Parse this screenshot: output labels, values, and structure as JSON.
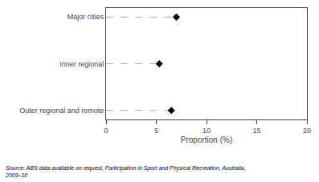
{
  "chart_data": {
    "type": "lollipop",
    "orientation": "horizontal",
    "categories": [
      "Outer regional and remote",
      "Inner regional",
      "Major cities"
    ],
    "values": [
      6.5,
      5.3,
      7.0
    ],
    "xlabel": "Proportion (%)",
    "xlim": [
      0,
      20
    ],
    "xticks": [
      0,
      5,
      10,
      15,
      20
    ],
    "color": "#000000",
    "marker": "diamond",
    "line_style": "dash",
    "grid": false,
    "annotations": [
      "Source: ABS data available on request, Participation in Sport and Physical Recreation, Australia,\n2009–10"
    ]
  }
}
